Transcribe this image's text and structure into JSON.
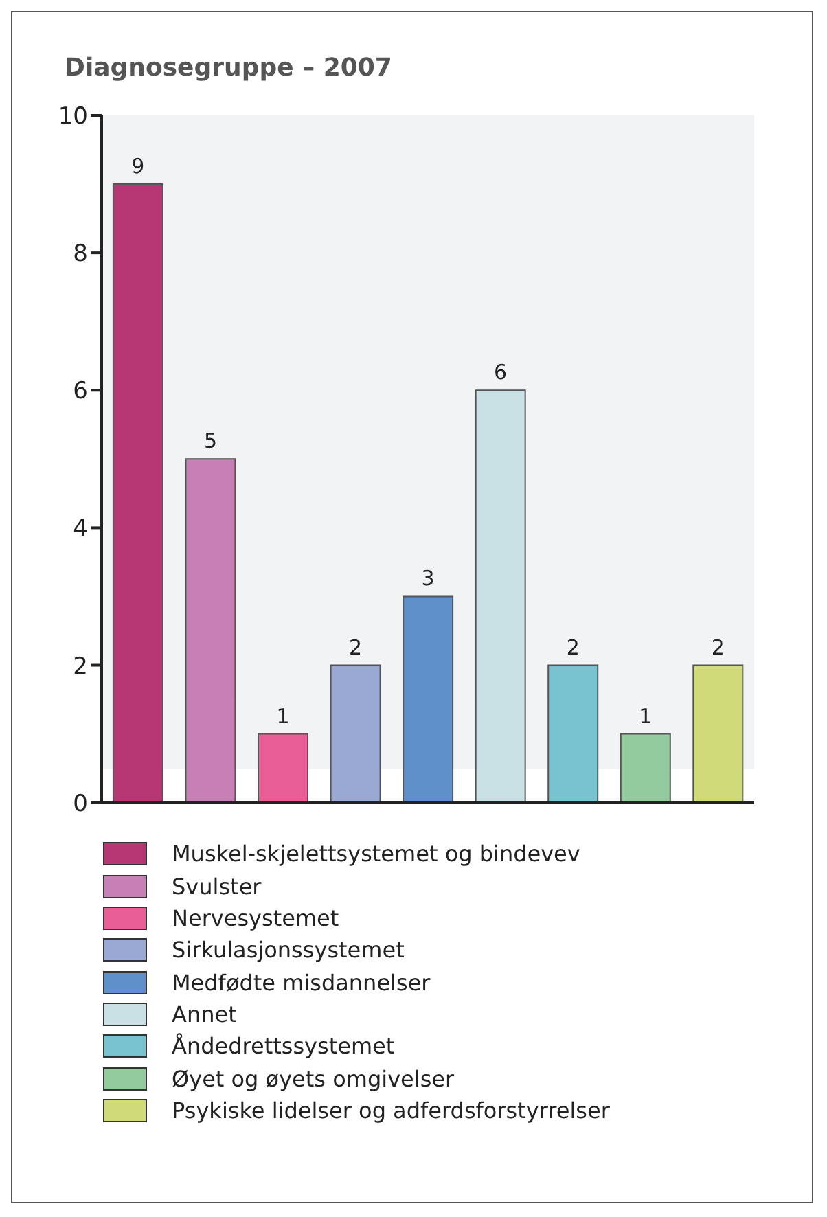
{
  "chart_data": {
    "type": "bar",
    "title": "Diagnosegruppe – 2007",
    "categories": [
      null,
      null,
      null,
      null,
      null,
      null,
      null,
      null,
      null
    ],
    "stacked": true,
    "series": [
      {
        "name": "Muskel-skjelettsystemet og bindevev",
        "color": "#b53774",
        "values": [
          9,
          null,
          null,
          null,
          null,
          null,
          null,
          null,
          null
        ]
      },
      {
        "name": "Svulster",
        "color": "#c680b5",
        "values": [
          null,
          5,
          null,
          null,
          null,
          null,
          null,
          null,
          null
        ]
      },
      {
        "name": "Nervesystemet",
        "color": "#e95e95",
        "values": [
          null,
          null,
          1,
          null,
          null,
          null,
          null,
          null,
          null
        ]
      },
      {
        "name": "Sirkulasjonssystemet",
        "color": "#99a9d4",
        "values": [
          null,
          null,
          null,
          2,
          null,
          null,
          null,
          null,
          null
        ]
      },
      {
        "name": "Medfødte misdannelser",
        "color": "#5f90ca",
        "values": [
          null,
          null,
          null,
          null,
          3,
          null,
          null,
          null,
          null
        ]
      },
      {
        "name": "Annet",
        "color": "#c9e1e5",
        "values": [
          null,
          null,
          null,
          null,
          null,
          6,
          null,
          null,
          null
        ]
      },
      {
        "name": "Åndedrettssystemet",
        "color": "#78c3cf",
        "values": [
          null,
          null,
          null,
          null,
          null,
          null,
          2,
          null,
          null
        ]
      },
      {
        "name": "Øyet og øyets omgivelser",
        "color": "#93cb9c",
        "values": [
          null,
          null,
          null,
          null,
          null,
          null,
          null,
          1,
          null
        ]
      },
      {
        "name": "Psykiske lidelser og adferdsforstyrrelser",
        "color": "#d0da78",
        "values": [
          null,
          null,
          null,
          null,
          null,
          null,
          null,
          null,
          2
        ]
      }
    ],
    "ylim": [
      0,
      10
    ],
    "yticks": [
      0,
      2,
      4,
      6,
      8,
      10
    ],
    "grid": false,
    "data_labels": true,
    "legend": "bottom",
    "tick_labels": "y"
  }
}
